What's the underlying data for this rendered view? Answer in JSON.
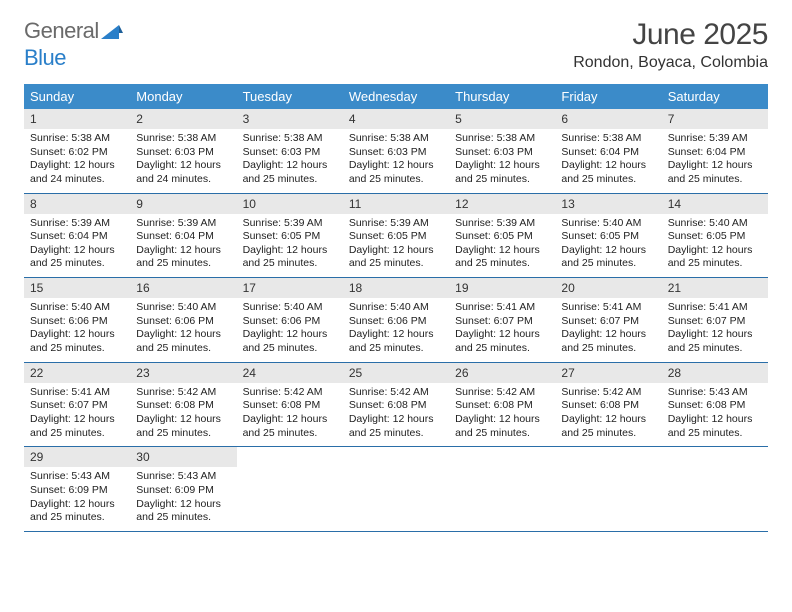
{
  "logo": {
    "text1": "General",
    "text2": "Blue"
  },
  "title": {
    "month": "June 2025",
    "location": "Rondon, Boyaca, Colombia"
  },
  "colors": {
    "header_bg": "#3b8bc9",
    "daynum_bg": "#e8e8e8",
    "week_border": "#2a6ea8",
    "logo_gray": "#6a6a6a",
    "logo_blue": "#2a7fc9"
  },
  "day_labels": [
    "Sunday",
    "Monday",
    "Tuesday",
    "Wednesday",
    "Thursday",
    "Friday",
    "Saturday"
  ],
  "weeks": [
    [
      {
        "n": "1",
        "sunrise": "Sunrise: 5:38 AM",
        "sunset": "Sunset: 6:02 PM",
        "day1": "Daylight: 12 hours",
        "day2": "and 24 minutes."
      },
      {
        "n": "2",
        "sunrise": "Sunrise: 5:38 AM",
        "sunset": "Sunset: 6:03 PM",
        "day1": "Daylight: 12 hours",
        "day2": "and 24 minutes."
      },
      {
        "n": "3",
        "sunrise": "Sunrise: 5:38 AM",
        "sunset": "Sunset: 6:03 PM",
        "day1": "Daylight: 12 hours",
        "day2": "and 25 minutes."
      },
      {
        "n": "4",
        "sunrise": "Sunrise: 5:38 AM",
        "sunset": "Sunset: 6:03 PM",
        "day1": "Daylight: 12 hours",
        "day2": "and 25 minutes."
      },
      {
        "n": "5",
        "sunrise": "Sunrise: 5:38 AM",
        "sunset": "Sunset: 6:03 PM",
        "day1": "Daylight: 12 hours",
        "day2": "and 25 minutes."
      },
      {
        "n": "6",
        "sunrise": "Sunrise: 5:38 AM",
        "sunset": "Sunset: 6:04 PM",
        "day1": "Daylight: 12 hours",
        "day2": "and 25 minutes."
      },
      {
        "n": "7",
        "sunrise": "Sunrise: 5:39 AM",
        "sunset": "Sunset: 6:04 PM",
        "day1": "Daylight: 12 hours",
        "day2": "and 25 minutes."
      }
    ],
    [
      {
        "n": "8",
        "sunrise": "Sunrise: 5:39 AM",
        "sunset": "Sunset: 6:04 PM",
        "day1": "Daylight: 12 hours",
        "day2": "and 25 minutes."
      },
      {
        "n": "9",
        "sunrise": "Sunrise: 5:39 AM",
        "sunset": "Sunset: 6:04 PM",
        "day1": "Daylight: 12 hours",
        "day2": "and 25 minutes."
      },
      {
        "n": "10",
        "sunrise": "Sunrise: 5:39 AM",
        "sunset": "Sunset: 6:05 PM",
        "day1": "Daylight: 12 hours",
        "day2": "and 25 minutes."
      },
      {
        "n": "11",
        "sunrise": "Sunrise: 5:39 AM",
        "sunset": "Sunset: 6:05 PM",
        "day1": "Daylight: 12 hours",
        "day2": "and 25 minutes."
      },
      {
        "n": "12",
        "sunrise": "Sunrise: 5:39 AM",
        "sunset": "Sunset: 6:05 PM",
        "day1": "Daylight: 12 hours",
        "day2": "and 25 minutes."
      },
      {
        "n": "13",
        "sunrise": "Sunrise: 5:40 AM",
        "sunset": "Sunset: 6:05 PM",
        "day1": "Daylight: 12 hours",
        "day2": "and 25 minutes."
      },
      {
        "n": "14",
        "sunrise": "Sunrise: 5:40 AM",
        "sunset": "Sunset: 6:05 PM",
        "day1": "Daylight: 12 hours",
        "day2": "and 25 minutes."
      }
    ],
    [
      {
        "n": "15",
        "sunrise": "Sunrise: 5:40 AM",
        "sunset": "Sunset: 6:06 PM",
        "day1": "Daylight: 12 hours",
        "day2": "and 25 minutes."
      },
      {
        "n": "16",
        "sunrise": "Sunrise: 5:40 AM",
        "sunset": "Sunset: 6:06 PM",
        "day1": "Daylight: 12 hours",
        "day2": "and 25 minutes."
      },
      {
        "n": "17",
        "sunrise": "Sunrise: 5:40 AM",
        "sunset": "Sunset: 6:06 PM",
        "day1": "Daylight: 12 hours",
        "day2": "and 25 minutes."
      },
      {
        "n": "18",
        "sunrise": "Sunrise: 5:40 AM",
        "sunset": "Sunset: 6:06 PM",
        "day1": "Daylight: 12 hours",
        "day2": "and 25 minutes."
      },
      {
        "n": "19",
        "sunrise": "Sunrise: 5:41 AM",
        "sunset": "Sunset: 6:07 PM",
        "day1": "Daylight: 12 hours",
        "day2": "and 25 minutes."
      },
      {
        "n": "20",
        "sunrise": "Sunrise: 5:41 AM",
        "sunset": "Sunset: 6:07 PM",
        "day1": "Daylight: 12 hours",
        "day2": "and 25 minutes."
      },
      {
        "n": "21",
        "sunrise": "Sunrise: 5:41 AM",
        "sunset": "Sunset: 6:07 PM",
        "day1": "Daylight: 12 hours",
        "day2": "and 25 minutes."
      }
    ],
    [
      {
        "n": "22",
        "sunrise": "Sunrise: 5:41 AM",
        "sunset": "Sunset: 6:07 PM",
        "day1": "Daylight: 12 hours",
        "day2": "and 25 minutes."
      },
      {
        "n": "23",
        "sunrise": "Sunrise: 5:42 AM",
        "sunset": "Sunset: 6:08 PM",
        "day1": "Daylight: 12 hours",
        "day2": "and 25 minutes."
      },
      {
        "n": "24",
        "sunrise": "Sunrise: 5:42 AM",
        "sunset": "Sunset: 6:08 PM",
        "day1": "Daylight: 12 hours",
        "day2": "and 25 minutes."
      },
      {
        "n": "25",
        "sunrise": "Sunrise: 5:42 AM",
        "sunset": "Sunset: 6:08 PM",
        "day1": "Daylight: 12 hours",
        "day2": "and 25 minutes."
      },
      {
        "n": "26",
        "sunrise": "Sunrise: 5:42 AM",
        "sunset": "Sunset: 6:08 PM",
        "day1": "Daylight: 12 hours",
        "day2": "and 25 minutes."
      },
      {
        "n": "27",
        "sunrise": "Sunrise: 5:42 AM",
        "sunset": "Sunset: 6:08 PM",
        "day1": "Daylight: 12 hours",
        "day2": "and 25 minutes."
      },
      {
        "n": "28",
        "sunrise": "Sunrise: 5:43 AM",
        "sunset": "Sunset: 6:08 PM",
        "day1": "Daylight: 12 hours",
        "day2": "and 25 minutes."
      }
    ],
    [
      {
        "n": "29",
        "sunrise": "Sunrise: 5:43 AM",
        "sunset": "Sunset: 6:09 PM",
        "day1": "Daylight: 12 hours",
        "day2": "and 25 minutes."
      },
      {
        "n": "30",
        "sunrise": "Sunrise: 5:43 AM",
        "sunset": "Sunset: 6:09 PM",
        "day1": "Daylight: 12 hours",
        "day2": "and 25 minutes."
      },
      null,
      null,
      null,
      null,
      null
    ]
  ]
}
